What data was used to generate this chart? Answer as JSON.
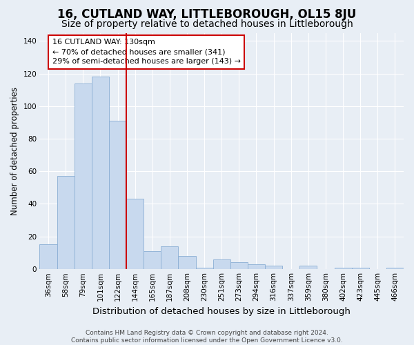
{
  "title": "16, CUTLAND WAY, LITTLEBOROUGH, OL15 8JU",
  "subtitle": "Size of property relative to detached houses in Littleborough",
  "xlabel": "Distribution of detached houses by size in Littleborough",
  "ylabel": "Number of detached properties",
  "categories": [
    "36sqm",
    "58sqm",
    "79sqm",
    "101sqm",
    "122sqm",
    "144sqm",
    "165sqm",
    "187sqm",
    "208sqm",
    "230sqm",
    "251sqm",
    "273sqm",
    "294sqm",
    "316sqm",
    "337sqm",
    "359sqm",
    "380sqm",
    "402sqm",
    "423sqm",
    "445sqm",
    "466sqm"
  ],
  "values": [
    15,
    57,
    114,
    118,
    91,
    43,
    11,
    14,
    8,
    1,
    6,
    4,
    3,
    2,
    0,
    2,
    0,
    1,
    1,
    0,
    1
  ],
  "bar_color": "#c8d9ee",
  "bar_edge_color": "#8aaed4",
  "background_color": "#e8eef5",
  "grid_color": "#ffffff",
  "vline_x_idx": 4,
  "vline_color": "#cc0000",
  "annotation_text_line1": "16 CUTLAND WAY: 130sqm",
  "annotation_text_line2": "← 70% of detached houses are smaller (341)",
  "annotation_text_line3": "29% of semi-detached houses are larger (143) →",
  "annotation_box_color": "#ffffff",
  "annotation_box_edge": "#cc0000",
  "footer_text": "Contains HM Land Registry data © Crown copyright and database right 2024.\nContains public sector information licensed under the Open Government Licence v3.0.",
  "ylim": [
    0,
    145
  ],
  "yticks": [
    0,
    20,
    40,
    60,
    80,
    100,
    120,
    140
  ],
  "title_fontsize": 12,
  "subtitle_fontsize": 10,
  "xlabel_fontsize": 9.5,
  "ylabel_fontsize": 8.5,
  "tick_fontsize": 7.5,
  "annotation_fontsize": 8,
  "footer_fontsize": 6.5
}
